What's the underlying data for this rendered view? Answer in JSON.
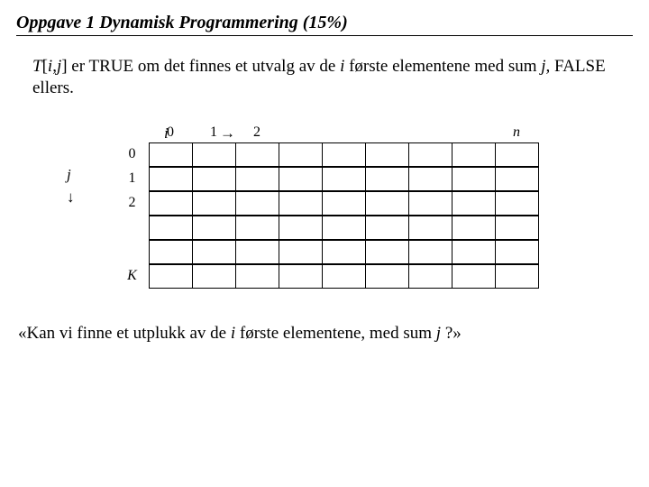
{
  "title": "Oppgave 1   Dynamisk Programmering (15%)",
  "desc_prefix1": "T",
  "desc_bracket_open": "[",
  "desc_i": "i",
  "desc_comma": ",",
  "desc_j": "j",
  "desc_bracket_close": "]",
  "desc_text1": " er TRUE om det finnes et utvalg av de ",
  "desc_i2": "i",
  "desc_text2": " første elementene med sum ",
  "desc_j2": "j,",
  "desc_text3": " FALSE ellers.",
  "axis_i": "i",
  "axis_arrow_right": "→",
  "axis_j": "j",
  "axis_arrow_down": "↓",
  "col_labels": {
    "c0": "0",
    "c1": "1",
    "c2": "2",
    "cn": "n"
  },
  "row_labels": {
    "r0": "0",
    "r1": "1",
    "r2": "2",
    "rk": "K"
  },
  "question_prefix": "«Kan vi finne et utplukk av de ",
  "question_i": "i",
  "question_mid": " første elementene, med sum ",
  "question_j": "j",
  "question_suffix": " ?»",
  "table": {
    "rows": 6,
    "cols": 9
  }
}
